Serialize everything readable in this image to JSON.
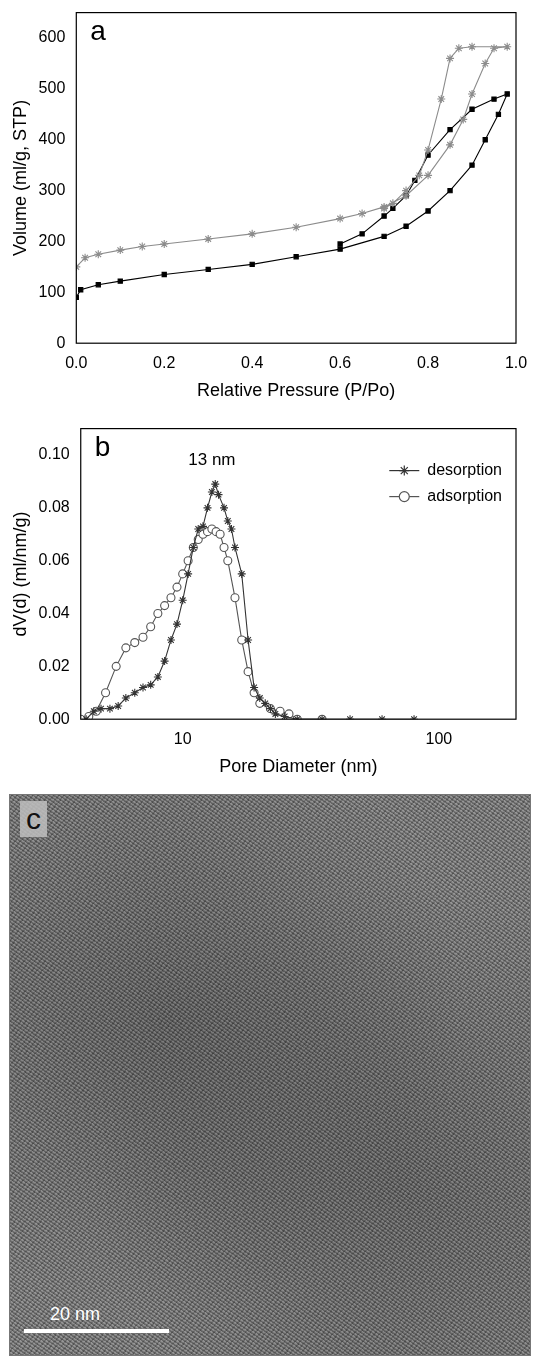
{
  "chart_data": [
    {
      "type": "line",
      "panel_label": "a",
      "x_label": "Relative Pressure (P/Po)",
      "y_label": "Volume (ml/g, STP)",
      "xlim": [
        0,
        1
      ],
      "ylim": [
        0,
        650
      ],
      "xticks": [
        {
          "value": 0,
          "label": "0.0"
        },
        0.2,
        0.4,
        0.6,
        0.8,
        {
          "value": 1,
          "label": "1.0"
        }
      ],
      "yticks": [
        0,
        100,
        200,
        300,
        400,
        500,
        600
      ],
      "grid": false,
      "series": [
        {
          "color": "#8c8c8c",
          "marker": "star",
          "x": [
            0,
            0.02,
            0.05,
            0.1,
            0.15,
            0.2,
            0.3,
            0.4,
            0.5,
            0.6,
            0.65,
            0.7,
            0.75,
            0.8,
            0.85,
            0.88,
            0.9,
            0.93,
            0.95,
            0.98,
            0.9,
            0.87,
            0.85,
            0.83,
            0.8,
            0.78,
            0.75,
            0.72,
            0.7
          ],
          "values": [
            150,
            168,
            175,
            183,
            190,
            195,
            205,
            215,
            228,
            245,
            255,
            268,
            290,
            330,
            390,
            440,
            490,
            550,
            580,
            583,
            583,
            580,
            560,
            480,
            380,
            330,
            300,
            275,
            265
          ]
        },
        {
          "color": "#000000",
          "marker": "square",
          "x": [
            0,
            0.01,
            0.05,
            0.1,
            0.2,
            0.3,
            0.4,
            0.5,
            0.6,
            0.7,
            0.75,
            0.8,
            0.85,
            0.9,
            0.93,
            0.96,
            0.98,
            0.95,
            0.9,
            0.85,
            0.8,
            0.77,
            0.75,
            0.72,
            0.7,
            0.65,
            0.6
          ],
          "values": [
            90,
            105,
            115,
            122,
            135,
            145,
            155,
            170,
            185,
            210,
            230,
            260,
            300,
            350,
            400,
            450,
            490,
            480,
            460,
            420,
            370,
            320,
            290,
            265,
            250,
            215,
            195
          ]
        }
      ]
    },
    {
      "type": "line",
      "panel_label": "b",
      "log": "x",
      "x_label": "Pore Diameter (nm)",
      "y_label": "dV(d) (ml/nm/g)",
      "xlim": [
        4,
        200
      ],
      "ylim": [
        0,
        0.11
      ],
      "xticks": [
        10,
        100
      ],
      "yticks": [
        {
          "value": 0,
          "label": "0.00"
        },
        {
          "value": 0.02,
          "label": "0.02"
        },
        {
          "value": 0.04,
          "label": "0.04"
        },
        {
          "value": 0.06,
          "label": "0.06"
        },
        {
          "value": 0.08,
          "label": "0.08"
        },
        {
          "value": 0.1,
          "label": "0.10"
        }
      ],
      "grid": false,
      "legend": "top-right",
      "annotations": [
        {
          "text": "13 nm",
          "x": 13,
          "y": 0.098
        }
      ],
      "series": [
        {
          "name": "desorption",
          "color": "#333333",
          "marker": "star",
          "x": [
            4.2,
            4.5,
            4.8,
            5.2,
            5.6,
            6,
            6.5,
            7,
            7.5,
            8,
            8.5,
            9,
            9.5,
            10,
            10.5,
            11,
            11.5,
            12,
            12.5,
            13,
            13.4,
            13.8,
            14.5,
            15,
            15.5,
            16,
            17,
            18,
            19,
            20,
            21,
            22,
            23,
            25,
            28,
            35,
            45,
            60,
            80
          ],
          "values": [
            0,
            0.003,
            0.004,
            0.004,
            0.005,
            0.008,
            0.01,
            0.012,
            0.013,
            0.016,
            0.022,
            0.03,
            0.036,
            0.045,
            0.055,
            0.065,
            0.072,
            0.073,
            0.08,
            0.086,
            0.089,
            0.085,
            0.08,
            0.075,
            0.072,
            0.065,
            0.055,
            0.03,
            0.012,
            0.008,
            0.006,
            0.004,
            0.002,
            0.001,
            0,
            0,
            0,
            0,
            0
          ]
        },
        {
          "name": "adsorption",
          "color": "#555555",
          "marker": "open-circle",
          "x": [
            4,
            4.3,
            4.6,
            5,
            5.5,
            6,
            6.5,
            7,
            7.5,
            8,
            8.5,
            9,
            9.5,
            10,
            10.5,
            11,
            11.5,
            12,
            12.5,
            13,
            13.5,
            14,
            14.5,
            15,
            16,
            17,
            18,
            19,
            20,
            22,
            24,
            26,
            28,
            35
          ],
          "values": [
            0,
            0.001,
            0.003,
            0.01,
            0.02,
            0.027,
            0.029,
            0.031,
            0.035,
            0.04,
            0.043,
            0.046,
            0.05,
            0.055,
            0.06,
            0.065,
            0.068,
            0.07,
            0.071,
            0.072,
            0.071,
            0.07,
            0.065,
            0.06,
            0.046,
            0.03,
            0.018,
            0.01,
            0.006,
            0.004,
            0.003,
            0.002,
            0,
            0
          ]
        }
      ]
    }
  ],
  "image_panel": {
    "panel_label": "c",
    "scale_bar_label": "20 nm"
  }
}
